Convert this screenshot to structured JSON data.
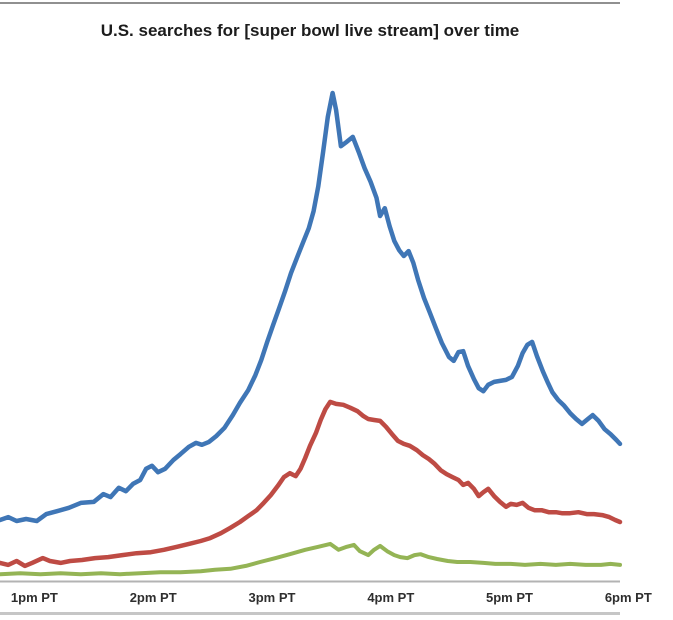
{
  "chart_data": {
    "type": "line",
    "title": "U.S. searches for [super bowl live stream] over time",
    "xlabel": "",
    "ylabel": "",
    "grid": false,
    "legend": false,
    "x_axis": {
      "unit": "time of day, Pacific Time",
      "domain_hours": [
        12.71,
        17.93
      ],
      "tick_hours": [
        13,
        14,
        15,
        16,
        17,
        18
      ],
      "tick_labels": [
        "1pm PT",
        "2pm PT",
        "3pm PT",
        "4pm PT",
        "5pm PT",
        "6pm PT"
      ]
    },
    "y_axis": {
      "visible": false,
      "relative_scale": [
        0,
        100
      ],
      "note": "relative search volume, peak of blue series = 100"
    },
    "series": [
      {
        "name": "green",
        "color": "#94B455",
        "stroke_width": 4,
        "points": [
          [
            12.71,
            1.4
          ],
          [
            12.88,
            1.6
          ],
          [
            13.05,
            1.4
          ],
          [
            13.22,
            1.6
          ],
          [
            13.39,
            1.4
          ],
          [
            13.56,
            1.6
          ],
          [
            13.72,
            1.4
          ],
          [
            13.89,
            1.6
          ],
          [
            14.06,
            1.8
          ],
          [
            14.23,
            1.8
          ],
          [
            14.4,
            2.0
          ],
          [
            14.52,
            2.3
          ],
          [
            14.65,
            2.5
          ],
          [
            14.78,
            3.1
          ],
          [
            14.9,
            3.9
          ],
          [
            15.03,
            4.7
          ],
          [
            15.15,
            5.5
          ],
          [
            15.28,
            6.4
          ],
          [
            15.39,
            7.0
          ],
          [
            15.49,
            7.6
          ],
          [
            15.56,
            6.4
          ],
          [
            15.63,
            7.0
          ],
          [
            15.69,
            7.4
          ],
          [
            15.74,
            6.1
          ],
          [
            15.81,
            5.3
          ],
          [
            15.86,
            6.4
          ],
          [
            15.91,
            7.2
          ],
          [
            15.97,
            6.1
          ],
          [
            16.03,
            5.3
          ],
          [
            16.08,
            4.9
          ],
          [
            16.14,
            4.7
          ],
          [
            16.2,
            5.3
          ],
          [
            16.25,
            5.5
          ],
          [
            16.32,
            4.9
          ],
          [
            16.39,
            4.5
          ],
          [
            16.48,
            4.1
          ],
          [
            16.56,
            3.9
          ],
          [
            16.67,
            3.9
          ],
          [
            16.78,
            3.7
          ],
          [
            16.88,
            3.5
          ],
          [
            17.01,
            3.5
          ],
          [
            17.13,
            3.3
          ],
          [
            17.26,
            3.5
          ],
          [
            17.39,
            3.3
          ],
          [
            17.51,
            3.5
          ],
          [
            17.64,
            3.3
          ],
          [
            17.77,
            3.3
          ],
          [
            17.85,
            3.5
          ],
          [
            17.93,
            3.3
          ]
        ]
      },
      {
        "name": "red",
        "color": "#BE4B44",
        "stroke_width": 4.5,
        "points": [
          [
            12.71,
            3.7
          ],
          [
            12.78,
            3.3
          ],
          [
            12.85,
            4.1
          ],
          [
            12.92,
            3.1
          ],
          [
            12.98,
            3.7
          ],
          [
            13.07,
            4.7
          ],
          [
            13.13,
            4.1
          ],
          [
            13.22,
            3.7
          ],
          [
            13.3,
            4.1
          ],
          [
            13.4,
            4.3
          ],
          [
            13.51,
            4.7
          ],
          [
            13.62,
            4.9
          ],
          [
            13.74,
            5.3
          ],
          [
            13.86,
            5.7
          ],
          [
            13.98,
            5.9
          ],
          [
            14.09,
            6.4
          ],
          [
            14.2,
            7.0
          ],
          [
            14.3,
            7.6
          ],
          [
            14.4,
            8.2
          ],
          [
            14.48,
            8.8
          ],
          [
            14.57,
            9.8
          ],
          [
            14.65,
            10.9
          ],
          [
            14.73,
            12.1
          ],
          [
            14.8,
            13.3
          ],
          [
            14.87,
            14.5
          ],
          [
            14.93,
            16.0
          ],
          [
            14.99,
            17.6
          ],
          [
            15.05,
            19.5
          ],
          [
            15.1,
            21.3
          ],
          [
            15.15,
            22.1
          ],
          [
            15.2,
            21.5
          ],
          [
            15.24,
            23.0
          ],
          [
            15.28,
            25.2
          ],
          [
            15.32,
            27.7
          ],
          [
            15.37,
            30.3
          ],
          [
            15.41,
            33.0
          ],
          [
            15.45,
            35.2
          ],
          [
            15.49,
            36.7
          ],
          [
            15.54,
            36.3
          ],
          [
            15.6,
            36.1
          ],
          [
            15.66,
            35.5
          ],
          [
            15.72,
            34.8
          ],
          [
            15.77,
            33.8
          ],
          [
            15.81,
            33.2
          ],
          [
            15.86,
            33.0
          ],
          [
            15.91,
            32.8
          ],
          [
            15.96,
            31.6
          ],
          [
            16.01,
            30.1
          ],
          [
            16.06,
            28.7
          ],
          [
            16.11,
            28.1
          ],
          [
            16.16,
            27.7
          ],
          [
            16.22,
            26.8
          ],
          [
            16.27,
            25.8
          ],
          [
            16.32,
            25.0
          ],
          [
            16.37,
            24.0
          ],
          [
            16.42,
            22.7
          ],
          [
            16.47,
            21.9
          ],
          [
            16.52,
            21.3
          ],
          [
            16.57,
            20.7
          ],
          [
            16.61,
            19.7
          ],
          [
            16.65,
            20.1
          ],
          [
            16.7,
            18.9
          ],
          [
            16.74,
            17.4
          ],
          [
            16.78,
            18.2
          ],
          [
            16.82,
            18.9
          ],
          [
            16.87,
            17.4
          ],
          [
            16.92,
            16.2
          ],
          [
            16.97,
            15.2
          ],
          [
            17.01,
            15.8
          ],
          [
            17.06,
            15.6
          ],
          [
            17.11,
            16.0
          ],
          [
            17.16,
            15.0
          ],
          [
            17.21,
            14.5
          ],
          [
            17.27,
            14.5
          ],
          [
            17.33,
            14.1
          ],
          [
            17.39,
            14.1
          ],
          [
            17.44,
            13.9
          ],
          [
            17.51,
            13.9
          ],
          [
            17.58,
            14.1
          ],
          [
            17.65,
            13.7
          ],
          [
            17.71,
            13.7
          ],
          [
            17.78,
            13.5
          ],
          [
            17.84,
            13.1
          ],
          [
            17.89,
            12.5
          ],
          [
            17.93,
            12.1
          ]
        ]
      },
      {
        "name": "blue",
        "color": "#3F76B6",
        "stroke_width": 4.5,
        "points": [
          [
            12.71,
            12.5
          ],
          [
            12.78,
            13.1
          ],
          [
            12.85,
            12.3
          ],
          [
            12.93,
            12.7
          ],
          [
            13.02,
            12.3
          ],
          [
            13.1,
            13.7
          ],
          [
            13.19,
            14.3
          ],
          [
            13.29,
            15.0
          ],
          [
            13.39,
            16.0
          ],
          [
            13.5,
            16.2
          ],
          [
            13.58,
            17.8
          ],
          [
            13.64,
            17.2
          ],
          [
            13.71,
            19.1
          ],
          [
            13.77,
            18.4
          ],
          [
            13.83,
            19.9
          ],
          [
            13.89,
            20.7
          ],
          [
            13.94,
            23.0
          ],
          [
            13.99,
            23.6
          ],
          [
            14.04,
            22.3
          ],
          [
            14.1,
            23.0
          ],
          [
            14.17,
            24.8
          ],
          [
            14.23,
            26.0
          ],
          [
            14.3,
            27.5
          ],
          [
            14.36,
            28.3
          ],
          [
            14.41,
            27.9
          ],
          [
            14.47,
            28.5
          ],
          [
            14.53,
            29.7
          ],
          [
            14.6,
            31.4
          ],
          [
            14.67,
            34.0
          ],
          [
            14.73,
            36.5
          ],
          [
            14.8,
            39.1
          ],
          [
            14.86,
            42.2
          ],
          [
            14.91,
            45.3
          ],
          [
            14.96,
            49.0
          ],
          [
            15.01,
            52.5
          ],
          [
            15.06,
            55.9
          ],
          [
            15.11,
            59.4
          ],
          [
            15.16,
            63.1
          ],
          [
            15.21,
            66.2
          ],
          [
            15.26,
            69.3
          ],
          [
            15.31,
            72.3
          ],
          [
            15.35,
            75.8
          ],
          [
            15.39,
            80.9
          ],
          [
            15.43,
            87.9
          ],
          [
            15.47,
            95.1
          ],
          [
            15.51,
            100.0
          ],
          [
            15.54,
            96.5
          ],
          [
            15.58,
            89.1
          ],
          [
            15.63,
            90.0
          ],
          [
            15.68,
            91.0
          ],
          [
            15.73,
            87.9
          ],
          [
            15.78,
            84.6
          ],
          [
            15.83,
            81.8
          ],
          [
            15.88,
            78.5
          ],
          [
            15.91,
            74.8
          ],
          [
            15.95,
            76.4
          ],
          [
            15.99,
            72.7
          ],
          [
            16.03,
            69.7
          ],
          [
            16.07,
            67.8
          ],
          [
            16.11,
            66.6
          ],
          [
            16.15,
            67.6
          ],
          [
            16.19,
            65.2
          ],
          [
            16.23,
            61.7
          ],
          [
            16.28,
            58.0
          ],
          [
            16.33,
            54.9
          ],
          [
            16.38,
            51.8
          ],
          [
            16.43,
            48.8
          ],
          [
            16.49,
            45.9
          ],
          [
            16.53,
            45.1
          ],
          [
            16.57,
            46.9
          ],
          [
            16.61,
            47.1
          ],
          [
            16.65,
            44.1
          ],
          [
            16.7,
            41.4
          ],
          [
            16.74,
            39.5
          ],
          [
            16.78,
            38.9
          ],
          [
            16.82,
            40.2
          ],
          [
            16.87,
            40.8
          ],
          [
            16.92,
            41.0
          ],
          [
            16.97,
            41.2
          ],
          [
            17.02,
            41.8
          ],
          [
            17.07,
            44.1
          ],
          [
            17.11,
            46.7
          ],
          [
            17.15,
            48.4
          ],
          [
            17.19,
            49.0
          ],
          [
            17.23,
            46.1
          ],
          [
            17.28,
            43.0
          ],
          [
            17.32,
            40.8
          ],
          [
            17.36,
            38.7
          ],
          [
            17.41,
            37.1
          ],
          [
            17.46,
            35.9
          ],
          [
            17.51,
            34.4
          ],
          [
            17.56,
            33.2
          ],
          [
            17.61,
            32.2
          ],
          [
            17.66,
            33.2
          ],
          [
            17.7,
            34.0
          ],
          [
            17.75,
            32.8
          ],
          [
            17.8,
            31.1
          ],
          [
            17.85,
            30.1
          ],
          [
            17.9,
            28.9
          ],
          [
            17.93,
            28.1
          ]
        ]
      }
    ],
    "axis_line_color": "#b3b3b3"
  }
}
